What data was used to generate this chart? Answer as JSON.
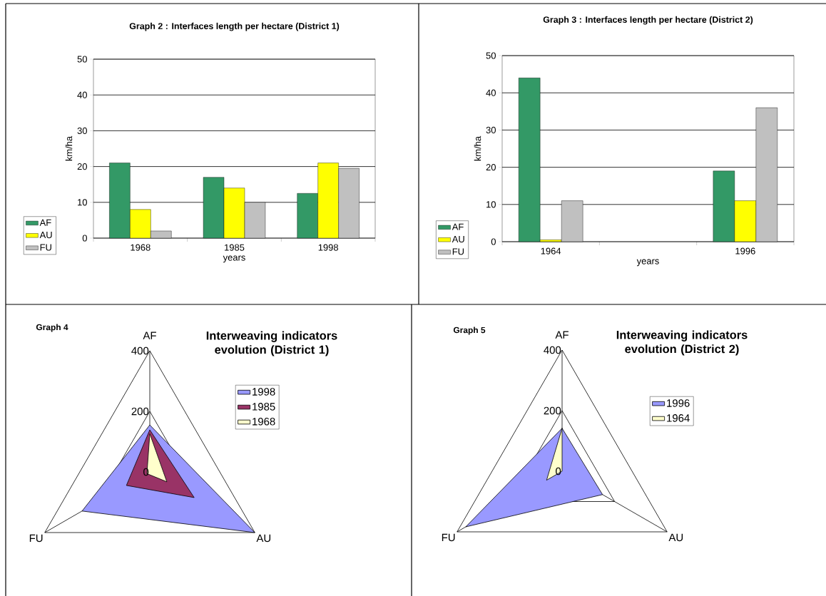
{
  "chart_data": [
    {
      "type": "bar",
      "title": "Graph 2 : Interfaces length per hectare (District 1)",
      "xlabel": "years",
      "ylabel": "km/ha",
      "categories": [
        "1968",
        "1985",
        "1998"
      ],
      "series": [
        {
          "name": "AF",
          "color": "#339966",
          "values": [
            21,
            17,
            12.5
          ]
        },
        {
          "name": "AU",
          "color": "#ffff00",
          "values": [
            8,
            14,
            21
          ]
        },
        {
          "name": "FU",
          "color": "#c0c0c0",
          "values": [
            2,
            10,
            19.5
          ]
        }
      ],
      "ylim": [
        0,
        50
      ],
      "yticks": [
        0,
        10,
        20,
        30,
        40,
        50
      ],
      "grid": "y",
      "legend": "left"
    },
    {
      "type": "bar",
      "title": "Graph 3 : Interfaces length per hectare (District 2)",
      "xlabel": "years",
      "ylabel": "km/ha",
      "categories": [
        "1964",
        null,
        "1996"
      ],
      "series": [
        {
          "name": "AF",
          "color": "#339966",
          "values": [
            44,
            null,
            19
          ]
        },
        {
          "name": "AU",
          "color": "#ffff00",
          "values": [
            0.5,
            null,
            11
          ]
        },
        {
          "name": "FU",
          "color": "#c0c0c0",
          "values": [
            11,
            null,
            36
          ]
        }
      ],
      "ylim": [
        0,
        50
      ],
      "yticks": [
        0,
        10,
        20,
        30,
        40,
        50
      ],
      "grid": "y",
      "legend": "left"
    },
    {
      "type": "radar",
      "title": "Interweaving indicators evolution (District 1)",
      "annotations": [
        "Graph 4"
      ],
      "categories": [
        "AF",
        "AU",
        "FU"
      ],
      "series": [
        {
          "name": "1998",
          "color": "#9999ff",
          "values": [
            155,
            400,
            258
          ]
        },
        {
          "name": "1985",
          "color": "#993366",
          "values": [
            139,
            169,
            89
          ]
        },
        {
          "name": "1968",
          "color": "#ffffcc",
          "values": [
            126,
            65,
            11
          ]
        }
      ],
      "ylim": [
        0,
        400
      ],
      "yticks": [
        0,
        200,
        400
      ],
      "grid": true,
      "legend": "right"
    },
    {
      "type": "radar",
      "title": "Interweaving indicators evolution (District 2)",
      "annotations": [
        "Graph 5"
      ],
      "categories": [
        "AF",
        "AU",
        "FU"
      ],
      "series": [
        {
          "name": "1996",
          "color": "#9999ff",
          "values": [
            142,
            154,
            367
          ]
        },
        {
          "name": "1964",
          "color": "#ffffcc",
          "values": [
            142,
            0,
            59
          ]
        }
      ],
      "ylim": [
        0,
        400
      ],
      "yticks": [
        0,
        200,
        400
      ],
      "grid": true,
      "legend": "right"
    }
  ]
}
